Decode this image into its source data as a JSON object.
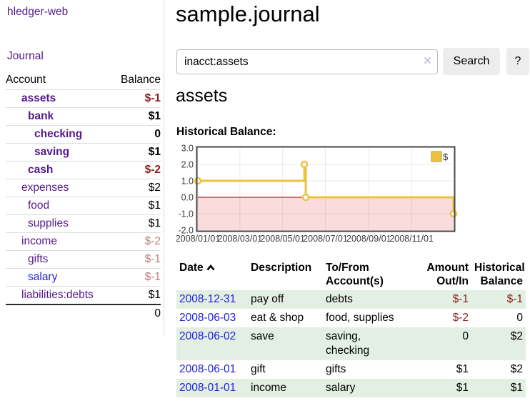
{
  "sidebar": {
    "brand": "hledger-web",
    "journal_link": "Journal",
    "accounts": {
      "headers": {
        "account": "Account",
        "balance": "Balance"
      },
      "rows": [
        {
          "name": "assets",
          "level": 1,
          "bold": true,
          "balance": "$-1",
          "balance_class": "neg"
        },
        {
          "name": "bank",
          "level": 2,
          "bold": true,
          "balance": "$1",
          "balance_class": ""
        },
        {
          "name": "checking",
          "level": 3,
          "bold": true,
          "balance": "0",
          "balance_class": ""
        },
        {
          "name": "saving",
          "level": 3,
          "bold": true,
          "balance": "$1",
          "balance_class": ""
        },
        {
          "name": "cash",
          "level": 2,
          "bold": true,
          "balance": "$-2",
          "balance_class": "neg"
        },
        {
          "name": "expenses",
          "level": 1,
          "bold": false,
          "balance": "$2",
          "balance_class": ""
        },
        {
          "name": "food",
          "level": 2,
          "bold": false,
          "balance": "$1",
          "balance_class": ""
        },
        {
          "name": "supplies",
          "level": 2,
          "bold": false,
          "balance": "$1",
          "balance_class": ""
        },
        {
          "name": "income",
          "level": 1,
          "bold": false,
          "balance": "$-2",
          "balance_class": "rose"
        },
        {
          "name": "gifts",
          "level": 2,
          "bold": false,
          "balance": "$-1",
          "balance_class": "rose"
        },
        {
          "name": "salary",
          "level": 2,
          "bold": false,
          "balance": "$-1",
          "balance_class": "rose",
          "link_class": "blue"
        },
        {
          "name": "liabilities:debts",
          "level": 1,
          "bold": false,
          "balance": "$1",
          "balance_class": ""
        }
      ],
      "total": "0"
    }
  },
  "main": {
    "title": "sample.journal",
    "search": {
      "value": "inacct:assets",
      "clear_label": "×",
      "search_button": "Search",
      "help_button": "?"
    },
    "heading": "assets",
    "chart_title": "Historical Balance:"
  },
  "chart_data": {
    "type": "line",
    "step": true,
    "title": "Historical Balance",
    "legend": [
      {
        "label": "$",
        "color": "#edc240"
      }
    ],
    "legend_position": "top-right",
    "grid": true,
    "ylim": [
      -2,
      3
    ],
    "y_ticks": [
      "3.0",
      "2.0",
      "1.0",
      "0.0",
      "-1.0",
      "-2.0"
    ],
    "y_tick_values": [
      3,
      2,
      1,
      0,
      -1,
      -2
    ],
    "x_range_days": [
      0,
      365
    ],
    "x_ticks": [
      {
        "label": "2008/01/01",
        "day": 0
      },
      {
        "label": "2008/03/01",
        "day": 60
      },
      {
        "label": "2008/05/01",
        "day": 121
      },
      {
        "label": "2008/07/01",
        "day": 182
      },
      {
        "label": "2008/09/01",
        "day": 244
      },
      {
        "label": "2008/11/01",
        "day": 305
      }
    ],
    "series": [
      {
        "name": "$",
        "color": "#edc240",
        "points": [
          {
            "date": "2008-01-01",
            "day": 0,
            "value": 1
          },
          {
            "date": "2008-06-01",
            "day": 152,
            "value": 2
          },
          {
            "date": "2008-06-03",
            "day": 154,
            "value": 0
          },
          {
            "date": "2008-12-31",
            "day": 365,
            "value": -1
          }
        ]
      }
    ],
    "negative_region_color": "#fbdcdc",
    "zero_line_color": "#a40000"
  },
  "transactions": {
    "headers": {
      "date": "Date",
      "description": "Description",
      "accounts": "To/From Account(s)",
      "amount": "Amount Out/In",
      "balance": "Historical Balance"
    },
    "rows": [
      {
        "date": "2008-12-31",
        "description": "pay off",
        "accounts": "debts",
        "amount": "$-1",
        "amount_class": "neg",
        "balance": "$-1",
        "balance_class": "neg"
      },
      {
        "date": "2008-06-03",
        "description": "eat & shop",
        "accounts": "food, supplies",
        "amount": "$-2",
        "amount_class": "neg",
        "balance": "0",
        "balance_class": ""
      },
      {
        "date": "2008-06-02",
        "description": "save",
        "accounts": "saving, checking",
        "amount": "0",
        "amount_class": "",
        "balance": "$2",
        "balance_class": ""
      },
      {
        "date": "2008-06-01",
        "description": "gift",
        "accounts": "gifts",
        "amount": "$1",
        "amount_class": "",
        "balance": "$2",
        "balance_class": ""
      },
      {
        "date": "2008-01-01",
        "description": "income",
        "accounts": "salary",
        "amount": "$1",
        "amount_class": "",
        "balance": "$1",
        "balance_class": ""
      }
    ]
  }
}
